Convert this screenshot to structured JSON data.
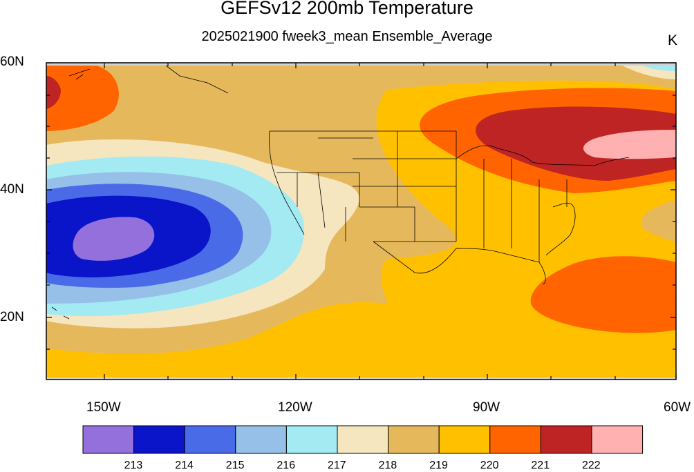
{
  "title": "GEFSv12 200mb Temperature",
  "subtitle": "2025021900 fweek3_mean Ensemble_Average",
  "units": "K",
  "lat_labels": [
    "60N",
    "40N",
    "20N"
  ],
  "lon_labels": [
    "150W",
    "120W",
    "90W",
    "60W"
  ],
  "colorbar": {
    "colors": [
      "#9370db",
      "#0a14c8",
      "#4a6be8",
      "#96c0e8",
      "#a3eaf2",
      "#f5e6c0",
      "#e6b85c",
      "#ffc000",
      "#ff6400",
      "#bf2424",
      "#ffb0b0"
    ],
    "labels": [
      "213",
      "214",
      "215",
      "216",
      "217",
      "218",
      "219",
      "220",
      "221",
      "222"
    ]
  },
  "map": {
    "region": "North Pacific / United States",
    "ocean_background": "#d2d2d2"
  }
}
